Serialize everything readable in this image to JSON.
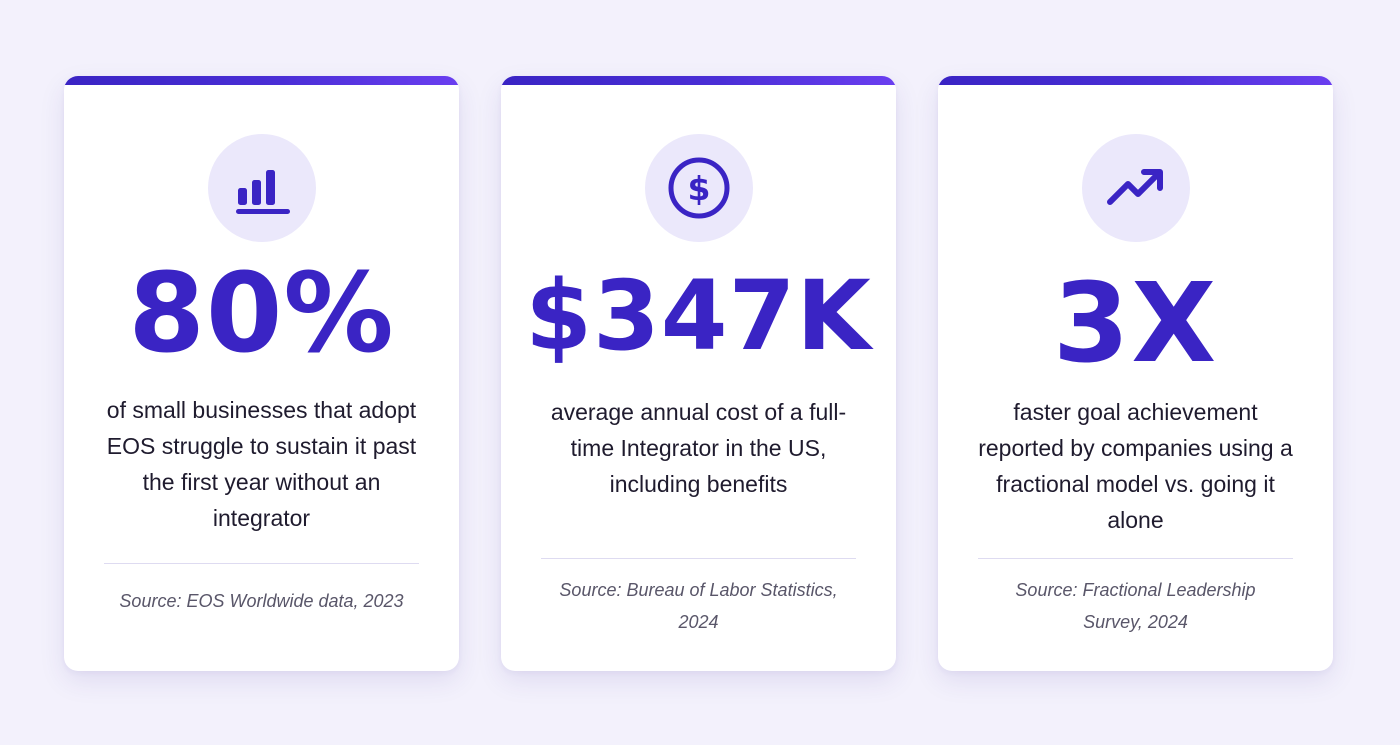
{
  "cards": [
    {
      "icon": "bar-chart-icon",
      "stat": "80%",
      "description": "of small businesses that adopt EOS struggle to sustain it past the first year without an integrator",
      "source": "Source: EOS Worldwide data, 2023"
    },
    {
      "icon": "dollar-circle-icon",
      "stat": "$347K",
      "description": "average annual cost of a full-time Integrator in the US, including benefits",
      "source": "Source: Bureau of Labor Statistics, 2024"
    },
    {
      "icon": "trending-up-icon",
      "stat": "3X",
      "description": "faster goal achievement reported by companies using a fractional model vs. going it alone",
      "source": "Source: Fractional Leadership Survey, 2024"
    }
  ],
  "colors": {
    "accent": "#3a24c4",
    "icon_bg": "#ebe8fb",
    "page_bg": "#f3f1fc",
    "text": "#1f1b2e",
    "muted": "#595669"
  }
}
